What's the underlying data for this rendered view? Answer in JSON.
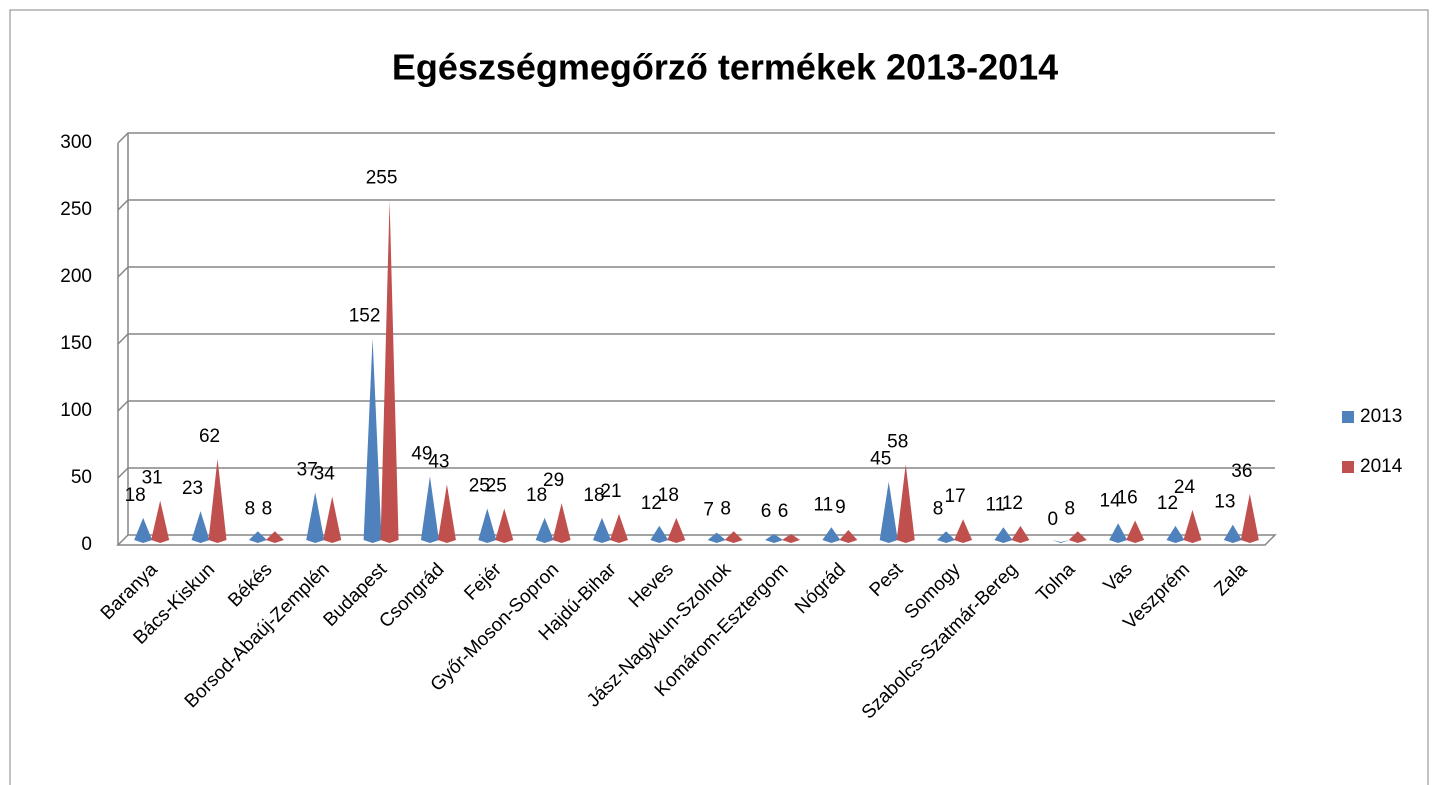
{
  "chart_data": {
    "type": "cone",
    "title": "Egészségmegőrző  termékek 2013-2014",
    "categories": [
      "Baranya",
      "Bács-Kiskun",
      "Békés",
      "Borsod-Abaúj-Zemplén",
      "Budapest",
      "Csongrád",
      "Fejér",
      "Győr-Moson-Sopron",
      "Hajdú-Bihar",
      "Heves",
      "Jász-Nagykun-Szolnok",
      "Komárom-Esztergom",
      "Nógrád",
      "Pest",
      "Somogy",
      "Szabolcs-Szatmár-Bereg",
      "Tolna",
      "Vas",
      "Veszprém",
      "Zala"
    ],
    "series": [
      {
        "name": "2013",
        "color": "#4f81bd",
        "values": [
          18,
          23,
          8,
          37,
          152,
          49,
          25,
          18,
          18,
          12,
          7,
          6,
          11,
          45,
          8,
          11,
          0,
          14,
          12,
          13
        ]
      },
      {
        "name": "2014",
        "color": "#c0504d",
        "values": [
          31,
          62,
          8,
          34,
          255,
          43,
          25,
          29,
          21,
          18,
          8,
          6,
          9,
          58,
          17,
          12,
          8,
          16,
          24,
          36
        ]
      }
    ],
    "ylim": [
      0,
      300
    ],
    "yticks": [
      0,
      50,
      100,
      150,
      200,
      250,
      300
    ],
    "grid": true,
    "legend": "right"
  }
}
